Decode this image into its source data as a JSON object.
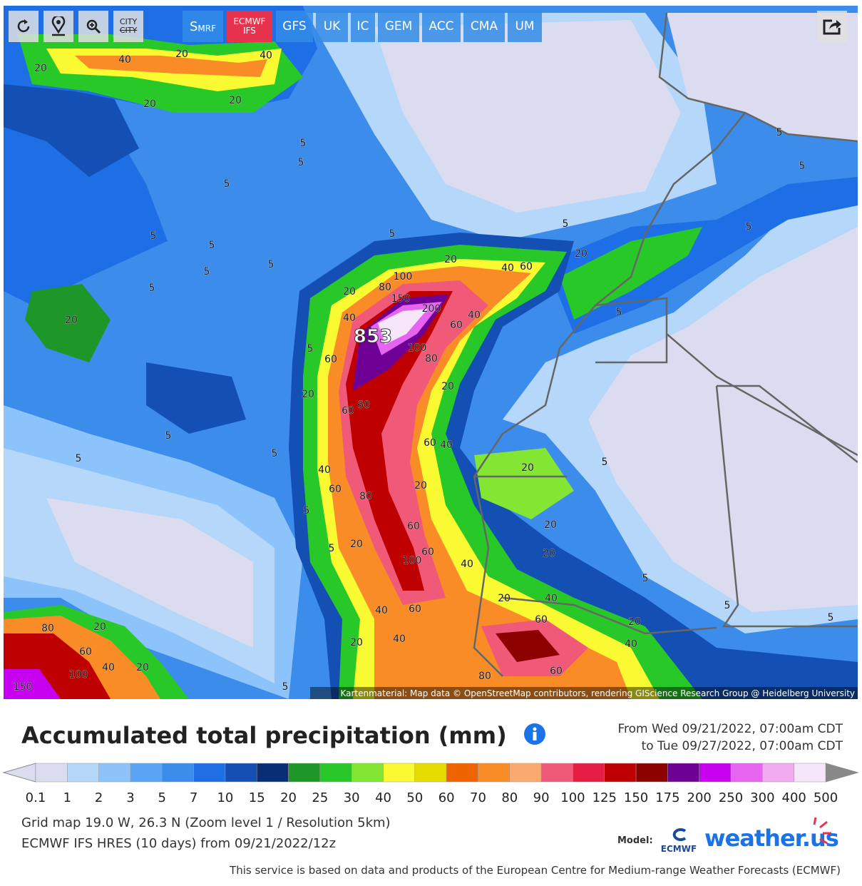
{
  "toolbar": {
    "city": [
      "CITY",
      "CITY"
    ],
    "srmf": {
      "label": "S",
      "sub": "MRF"
    },
    "ecmwf": {
      "label": "ECMWF",
      "sub": "IFS"
    },
    "models": [
      "GFS",
      "UK",
      "IC",
      "GEM",
      "ACC",
      "CMA",
      "UM"
    ]
  },
  "map": {
    "peak": "853",
    "attribution": "Kartenmaterial: Map data © OpenStreetMap contributors, rendering GIScience Research Group @ Heidelberg University",
    "contour_labels": [
      20,
      40,
      20,
      40,
      20,
      20,
      5,
      5,
      5,
      5,
      5,
      5,
      5,
      5,
      5,
      5,
      5,
      5,
      5,
      20,
      100,
      80,
      150,
      200,
      20,
      40,
      60,
      100,
      80,
      60,
      40,
      20,
      40,
      60,
      20,
      5,
      5,
      20,
      20,
      60,
      60,
      60,
      40,
      5,
      5,
      5,
      40,
      60,
      80,
      20,
      20,
      5,
      5,
      60,
      20,
      5,
      20,
      60,
      100,
      40,
      20,
      5,
      5,
      5,
      20,
      40,
      60,
      40,
      60,
      20,
      40,
      20,
      40,
      80,
      20,
      60,
      40,
      20,
      100,
      150,
      80,
      60,
      5
    ]
  },
  "header": {
    "title": "Accumulated total precipitation (mm)",
    "period": [
      "From Wed 09/21/2022, 07:00am CDT",
      "to Tue 09/27/2022, 07:00am CDT"
    ]
  },
  "legend": {
    "colors": [
      "#dcdcf0",
      "#b4d7fa",
      "#8cc3fa",
      "#5aa5f5",
      "#3c8ceb",
      "#1e6ee6",
      "#1450b4",
      "#0a2d78",
      "#1e9628",
      "#28c828",
      "#82e632",
      "#fafa32",
      "#e6dc00",
      "#f06400",
      "#fa8c28",
      "#faaa6e",
      "#f05a78",
      "#e61e46",
      "#be0000",
      "#8c0000",
      "#6e0096",
      "#c800f0",
      "#e664f0",
      "#f0aaf0",
      "#f5e6fa",
      "#d2d2d2"
    ],
    "ticks": [
      0.1,
      1,
      2,
      3,
      5,
      7,
      10,
      15,
      20,
      25,
      30,
      40,
      50,
      60,
      70,
      80,
      90,
      100,
      125,
      150,
      175,
      200,
      250,
      300,
      400,
      500
    ]
  },
  "info": [
    "Grid map 19.0 W, 26.3 N (Zoom level 1 / Resolution 5km)",
    "ECMWF IFS HRES (10 days) from 09/21/2022/12z"
  ],
  "branding": {
    "model_label": "Model:",
    "ecmwf": "ECMWF",
    "site": "weather.us"
  },
  "footer": "This service is based on data and products of the European Centre for Medium-range Weather Forecasts (ECMWF)"
}
